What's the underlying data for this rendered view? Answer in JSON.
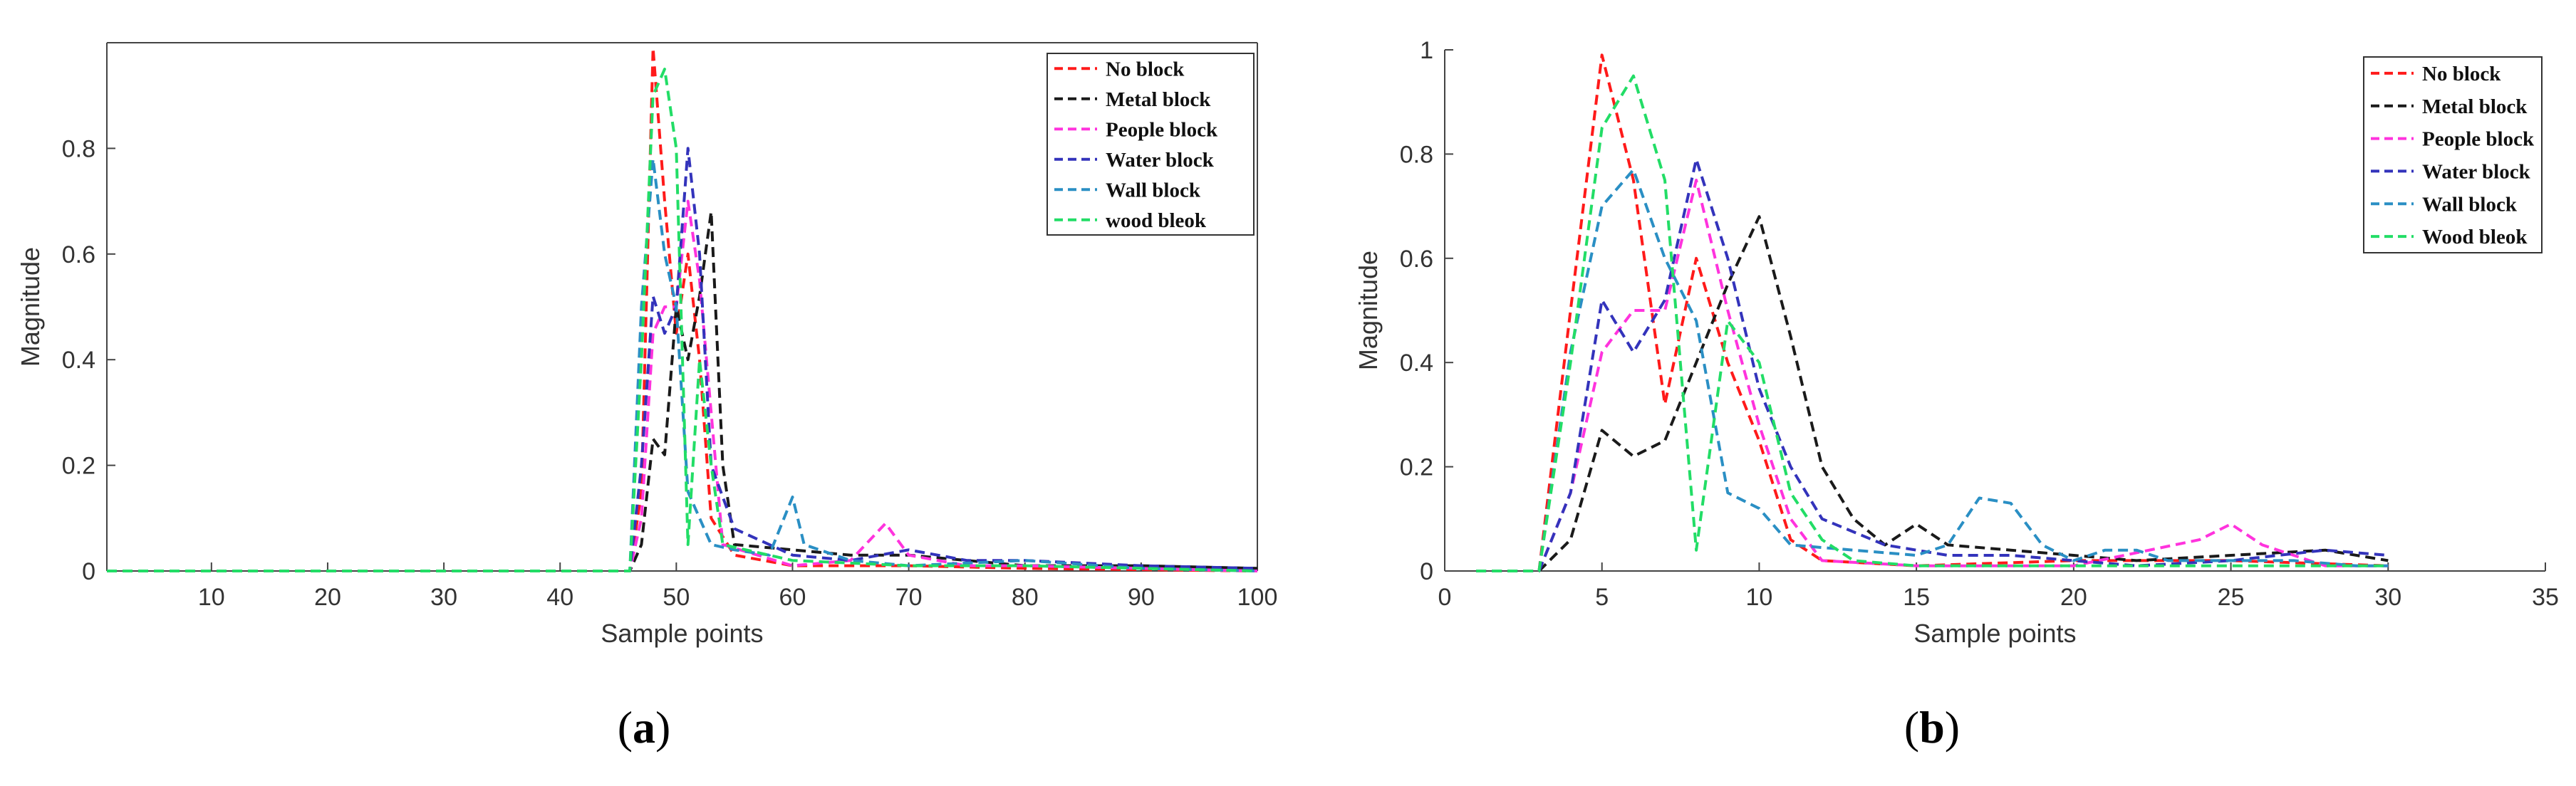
{
  "chart_data": [
    {
      "type": "line",
      "caption_label": "a",
      "xlabel": "Sample points",
      "ylabel": "Magnitude",
      "xlim": [
        1,
        100
      ],
      "ylim": [
        0,
        1
      ],
      "x_ticks": [
        10,
        20,
        30,
        40,
        50,
        60,
        70,
        80,
        90,
        100
      ],
      "y_ticks": [
        0,
        0.2,
        0.4,
        0.6,
        0.8
      ],
      "y_tick_labels": [
        "0",
        "0.2",
        "0.4",
        "0.6",
        "0.8"
      ],
      "grid": false,
      "box": true,
      "legend_position": "top-right",
      "series": [
        {
          "name": "No block",
          "color": "#ff1a1a",
          "points": [
            [
              1,
              0
            ],
            [
              46,
              0
            ],
            [
              47,
              0.15
            ],
            [
              48,
              0.99
            ],
            [
              49,
              0.7
            ],
            [
              50,
              0.45
            ],
            [
              51,
              0.6
            ],
            [
              52,
              0.4
            ],
            [
              53,
              0.1
            ],
            [
              55,
              0.03
            ],
            [
              60,
              0.01
            ],
            [
              70,
              0.01
            ],
            [
              80,
              0.005
            ],
            [
              100,
              0
            ]
          ]
        },
        {
          "name": "Metal block",
          "color": "#1a1a1a",
          "points": [
            [
              1,
              0
            ],
            [
              46,
              0
            ],
            [
              47,
              0.05
            ],
            [
              48,
              0.25
            ],
            [
              49,
              0.22
            ],
            [
              50,
              0.5
            ],
            [
              51,
              0.4
            ],
            [
              52,
              0.52
            ],
            [
              53,
              0.68
            ],
            [
              54,
              0.2
            ],
            [
              55,
              0.05
            ],
            [
              60,
              0.04
            ],
            [
              65,
              0.03
            ],
            [
              70,
              0.03
            ],
            [
              75,
              0.02
            ],
            [
              80,
              0.01
            ],
            [
              90,
              0.01
            ],
            [
              100,
              0.005
            ]
          ]
        },
        {
          "name": "People block",
          "color": "#ff33dd",
          "points": [
            [
              1,
              0
            ],
            [
              46,
              0
            ],
            [
              47,
              0.1
            ],
            [
              48,
              0.45
            ],
            [
              49,
              0.5
            ],
            [
              50,
              0.5
            ],
            [
              51,
              0.7
            ],
            [
              52,
              0.55
            ],
            [
              53,
              0.3
            ],
            [
              54,
              0.05
            ],
            [
              60,
              0.01
            ],
            [
              65,
              0.02
            ],
            [
              68,
              0.09
            ],
            [
              70,
              0.03
            ],
            [
              75,
              0.01
            ],
            [
              80,
              0.01
            ],
            [
              100,
              0
            ]
          ]
        },
        {
          "name": "Water block",
          "color": "#3333bb",
          "points": [
            [
              1,
              0
            ],
            [
              46,
              0
            ],
            [
              47,
              0.2
            ],
            [
              48,
              0.52
            ],
            [
              49,
              0.45
            ],
            [
              50,
              0.5
            ],
            [
              51,
              0.8
            ],
            [
              52,
              0.6
            ],
            [
              53,
              0.2
            ],
            [
              55,
              0.08
            ],
            [
              60,
              0.03
            ],
            [
              65,
              0.02
            ],
            [
              70,
              0.04
            ],
            [
              75,
              0.02
            ],
            [
              80,
              0.02
            ],
            [
              90,
              0.01
            ],
            [
              100,
              0.005
            ]
          ]
        },
        {
          "name": "Wall block",
          "color": "#2a8fc4",
          "points": [
            [
              1,
              0
            ],
            [
              46,
              0
            ],
            [
              47,
              0.5
            ],
            [
              48,
              0.78
            ],
            [
              49,
              0.6
            ],
            [
              50,
              0.5
            ],
            [
              51,
              0.15
            ],
            [
              53,
              0.05
            ],
            [
              55,
              0.04
            ],
            [
              58,
              0.03
            ],
            [
              60,
              0.14
            ],
            [
              61,
              0.05
            ],
            [
              65,
              0.02
            ],
            [
              70,
              0.01
            ],
            [
              80,
              0.02
            ],
            [
              90,
              0.005
            ],
            [
              100,
              0
            ]
          ]
        },
        {
          "name": "wood bleok",
          "color": "#22dd66",
          "points": [
            [
              1,
              0
            ],
            [
              46,
              0
            ],
            [
              47,
              0.4
            ],
            [
              48,
              0.9
            ],
            [
              49,
              0.95
            ],
            [
              50,
              0.8
            ],
            [
              51,
              0.05
            ],
            [
              52,
              0.4
            ],
            [
              53,
              0.2
            ],
            [
              54,
              0.05
            ],
            [
              60,
              0.02
            ],
            [
              70,
              0.01
            ],
            [
              80,
              0.01
            ],
            [
              100,
              0
            ]
          ]
        }
      ]
    },
    {
      "type": "line",
      "caption_label": "b",
      "xlabel": "Sample points",
      "ylabel": "Magnitude",
      "xlim": [
        0,
        35
      ],
      "ylim": [
        0,
        1
      ],
      "x_ticks": [
        0,
        5,
        10,
        15,
        20,
        25,
        30,
        35
      ],
      "y_ticks": [
        0,
        0.2,
        0.4,
        0.6,
        0.8,
        1
      ],
      "y_tick_labels": [
        "0",
        "0.2",
        "0.4",
        "0.6",
        "0.8",
        "1"
      ],
      "grid": false,
      "box": false,
      "legend_position": "top-right",
      "series": [
        {
          "name": "No block",
          "color": "#ff1a1a",
          "points": [
            [
              1,
              0
            ],
            [
              3,
              0
            ],
            [
              4,
              0.5
            ],
            [
              5,
              0.99
            ],
            [
              6,
              0.75
            ],
            [
              7,
              0.32
            ],
            [
              8,
              0.6
            ],
            [
              9,
              0.4
            ],
            [
              10,
              0.25
            ],
            [
              11,
              0.06
            ],
            [
              12,
              0.02
            ],
            [
              15,
              0.01
            ],
            [
              20,
              0.02
            ],
            [
              25,
              0.02
            ],
            [
              30,
              0.01
            ]
          ]
        },
        {
          "name": "Metal block",
          "color": "#1a1a1a",
          "points": [
            [
              1,
              0
            ],
            [
              3,
              0
            ],
            [
              4,
              0.06
            ],
            [
              5,
              0.27
            ],
            [
              6,
              0.22
            ],
            [
              7,
              0.25
            ],
            [
              8,
              0.4
            ],
            [
              9,
              0.55
            ],
            [
              10,
              0.68
            ],
            [
              11,
              0.45
            ],
            [
              12,
              0.2
            ],
            [
              13,
              0.1
            ],
            [
              14,
              0.05
            ],
            [
              15,
              0.09
            ],
            [
              16,
              0.05
            ],
            [
              18,
              0.04
            ],
            [
              20,
              0.03
            ],
            [
              22,
              0.02
            ],
            [
              25,
              0.03
            ],
            [
              28,
              0.04
            ],
            [
              30,
              0.02
            ]
          ]
        },
        {
          "name": "People block",
          "color": "#ff33dd",
          "points": [
            [
              1,
              0
            ],
            [
              3,
              0
            ],
            [
              4,
              0.15
            ],
            [
              5,
              0.42
            ],
            [
              6,
              0.5
            ],
            [
              7,
              0.5
            ],
            [
              8,
              0.75
            ],
            [
              9,
              0.5
            ],
            [
              10,
              0.28
            ],
            [
              11,
              0.1
            ],
            [
              12,
              0.02
            ],
            [
              15,
              0.01
            ],
            [
              20,
              0.01
            ],
            [
              24,
              0.06
            ],
            [
              25,
              0.09
            ],
            [
              26,
              0.05
            ],
            [
              28,
              0.01
            ],
            [
              30,
              0.01
            ]
          ]
        },
        {
          "name": "Water block",
          "color": "#3333bb",
          "points": [
            [
              1,
              0
            ],
            [
              3,
              0
            ],
            [
              4,
              0.15
            ],
            [
              5,
              0.52
            ],
            [
              6,
              0.42
            ],
            [
              7,
              0.52
            ],
            [
              8,
              0.79
            ],
            [
              9,
              0.6
            ],
            [
              10,
              0.35
            ],
            [
              11,
              0.2
            ],
            [
              12,
              0.1
            ],
            [
              14,
              0.05
            ],
            [
              16,
              0.03
            ],
            [
              18,
              0.03
            ],
            [
              20,
              0.02
            ],
            [
              22,
              0.01
            ],
            [
              25,
              0.02
            ],
            [
              28,
              0.04
            ],
            [
              30,
              0.03
            ]
          ]
        },
        {
          "name": "Wall block",
          "color": "#2a8fc4",
          "points": [
            [
              1,
              0
            ],
            [
              3,
              0
            ],
            [
              4,
              0.42
            ],
            [
              5,
              0.7
            ],
            [
              6,
              0.77
            ],
            [
              7,
              0.6
            ],
            [
              8,
              0.48
            ],
            [
              9,
              0.15
            ],
            [
              10,
              0.12
            ],
            [
              11,
              0.05
            ],
            [
              13,
              0.04
            ],
            [
              15,
              0.03
            ],
            [
              16,
              0.05
            ],
            [
              17,
              0.14
            ],
            [
              18,
              0.13
            ],
            [
              19,
              0.05
            ],
            [
              20,
              0.02
            ],
            [
              21,
              0.04
            ],
            [
              22,
              0.04
            ],
            [
              23,
              0.02
            ],
            [
              25,
              0.02
            ],
            [
              27,
              0.02
            ],
            [
              29,
              0.01
            ],
            [
              30,
              0.01
            ]
          ]
        },
        {
          "name": "Wood bleok",
          "color": "#22dd66",
          "points": [
            [
              1,
              0
            ],
            [
              3,
              0
            ],
            [
              4,
              0.4
            ],
            [
              5,
              0.85
            ],
            [
              6,
              0.95
            ],
            [
              7,
              0.75
            ],
            [
              8,
              0.04
            ],
            [
              9,
              0.48
            ],
            [
              10,
              0.4
            ],
            [
              11,
              0.15
            ],
            [
              12,
              0.06
            ],
            [
              13,
              0.02
            ],
            [
              15,
              0.01
            ],
            [
              20,
              0.01
            ],
            [
              25,
              0.01
            ],
            [
              30,
              0.01
            ]
          ]
        }
      ]
    }
  ]
}
